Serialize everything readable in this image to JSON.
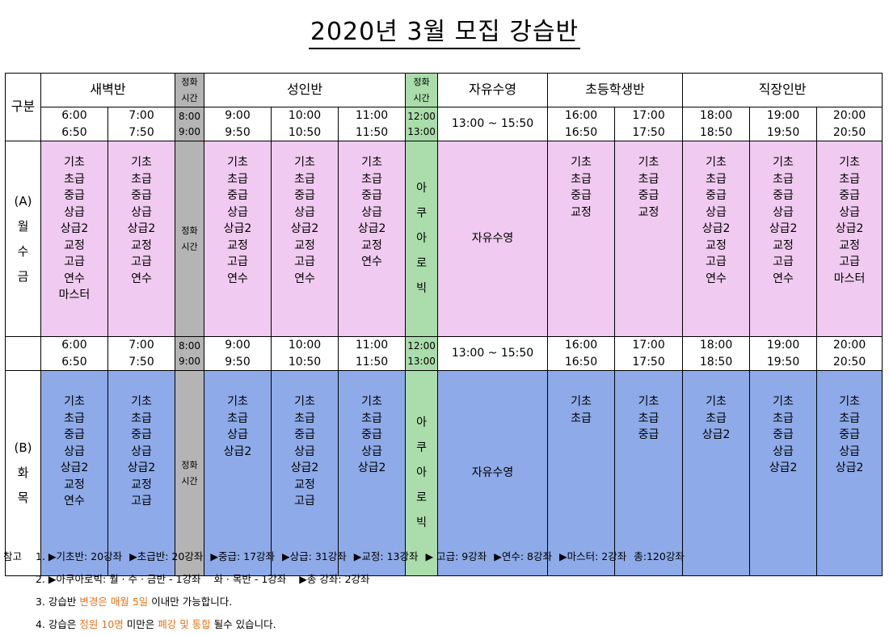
{
  "title": "2020년 3월 모집 강습반",
  "header": {
    "category": "구분",
    "dawn": "새벽반",
    "break_time": [
      "정화",
      "시간"
    ],
    "adult": "성인반",
    "free_swim": "자유수영",
    "elementary": "초등학생반",
    "worker": "직장인반"
  },
  "times": {
    "dawn": [
      [
        "6:00",
        "6:50"
      ],
      [
        "7:00",
        "7:50"
      ]
    ],
    "break1": [
      "8:00",
      "9:00"
    ],
    "adult": [
      [
        "9:00",
        "9:50"
      ],
      [
        "10:00",
        "10:50"
      ],
      [
        "11:00",
        "11:50"
      ]
    ],
    "break2": [
      "12:00",
      "13:00"
    ],
    "free_swim": "13:00 ~ 15:50",
    "elementary": [
      [
        "16:00",
        "16:50"
      ],
      [
        "17:00",
        "17:50"
      ]
    ],
    "worker": [
      [
        "18:00",
        "18:50"
      ],
      [
        "19:00",
        "19:50"
      ],
      [
        "20:00",
        "20:50"
      ]
    ]
  },
  "group_a": {
    "label": [
      "(A)",
      "월",
      "수",
      "금"
    ],
    "break_text": [
      "정화",
      "시간"
    ],
    "aqua": [
      "아",
      "쿠",
      "아",
      "로",
      "빅"
    ],
    "free_swim": "자유수영",
    "cols": [
      [
        "기초",
        "초급",
        "중급",
        "상급",
        "상급2",
        "교정",
        "고급",
        "연수",
        "마스터"
      ],
      [
        "기초",
        "초급",
        "중급",
        "상급",
        "상급2",
        "교정",
        "고급",
        "연수"
      ],
      [
        "기초",
        "초급",
        "중급",
        "상급",
        "상급2",
        "교정",
        "고급",
        "연수"
      ],
      [
        "기초",
        "초급",
        "중급",
        "상급",
        "상급2",
        "교정",
        "고급",
        "연수"
      ],
      [
        "기초",
        "초급",
        "중급",
        "상급",
        "상급2",
        "교정",
        "연수"
      ],
      [
        "기초",
        "초급",
        "중급",
        "교정"
      ],
      [
        "기초",
        "초급",
        "중급",
        "교정"
      ],
      [
        "기초",
        "초급",
        "중급",
        "상급",
        "상급2",
        "교정",
        "고급",
        "연수"
      ],
      [
        "기초",
        "초급",
        "중급",
        "상급",
        "상급2",
        "교정",
        "고급",
        "연수"
      ],
      [
        "기초",
        "초급",
        "중급",
        "상급",
        "상급2",
        "교정",
        "고급",
        "마스터"
      ]
    ]
  },
  "group_b": {
    "label": [
      "(B)",
      "화",
      "목"
    ],
    "break_text": [
      "정화",
      "시간"
    ],
    "aqua": [
      "아",
      "쿠",
      "아",
      "로",
      "빅"
    ],
    "free_swim": "자유수영",
    "cols": [
      [
        "기초",
        "초급",
        "중급",
        "상급",
        "상급2",
        "교정",
        "연수"
      ],
      [
        "기초",
        "초급",
        "중급",
        "상급",
        "상급2",
        "교정",
        "고급"
      ],
      [
        "기초",
        "초급",
        "상급",
        "상급2"
      ],
      [
        "기초",
        "초급",
        "중급",
        "상급",
        "상급2",
        "교정",
        "고급"
      ],
      [
        "기초",
        "초급",
        "중급",
        "상급",
        "상급2"
      ],
      [
        "기초",
        "초급"
      ],
      [
        "기초",
        "초급",
        "중급"
      ],
      [
        "기초",
        "초급",
        "상급2"
      ],
      [
        "기초",
        "초급",
        "중급",
        "상급",
        "상급2"
      ],
      [
        "기초",
        "초급",
        "중급",
        "상급",
        "상급2"
      ]
    ]
  },
  "notes": {
    "label": "참고",
    "line1": [
      "1. ▶기초반: 20강좌",
      "▶초급반: 20강좌",
      "▶중급: 17강좌",
      "▶상급: 31강좌",
      "▶교정: 13강좌",
      "▶ 고급: 9강좌",
      "▶연수: 8강좌",
      "▶마스터: 2강좌",
      "총:120강좌"
    ],
    "line2": [
      "2. ▶아쿠아로빅: 월 · 수 · 금반 - 1강좌",
      "화 · 목반 - 1강좌",
      "▶총 강좌: 2강좌"
    ],
    "line3": [
      "3. 강습반 ",
      "변경은 매월 5일",
      " 이내만 가능합니다."
    ],
    "line4": [
      "4. 강습은 ",
      "정원 10명",
      " 미만은 ",
      "폐강 및 통합",
      " 될수 있습니다."
    ]
  }
}
